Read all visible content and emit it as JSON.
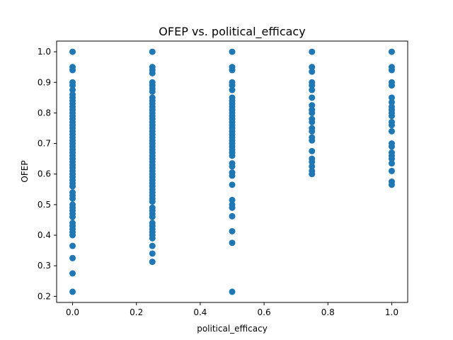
{
  "chart_data": {
    "type": "scatter",
    "title": "OFEP  vs. political_efficacy",
    "xlabel": "political_efficacy",
    "ylabel": "OFEP",
    "xlim": [
      -0.05,
      1.05
    ],
    "ylim": [
      0.18,
      1.035
    ],
    "xticks": [
      0.0,
      0.2,
      0.4,
      0.6,
      0.8,
      1.0
    ],
    "xtick_labels": [
      "0.0",
      "0.2",
      "0.4",
      "0.6",
      "0.8",
      "1.0"
    ],
    "yticks": [
      0.2,
      0.3,
      0.4,
      0.5,
      0.6,
      0.7,
      0.8,
      0.9,
      1.0
    ],
    "ytick_labels": [
      "0.2",
      "0.3",
      "0.4",
      "0.5",
      "0.6",
      "0.7",
      "0.8",
      "0.9",
      "1.0"
    ],
    "marker_color": "#1f77b4",
    "grid": false,
    "series": [
      {
        "name": "OFEP",
        "points": [
          {
            "x": 0.0,
            "y": 1.0
          },
          {
            "x": 0.0,
            "y": 0.95
          },
          {
            "x": 0.0,
            "y": 0.94
          },
          {
            "x": 0.0,
            "y": 0.9
          },
          {
            "x": 0.0,
            "y": 0.89
          },
          {
            "x": 0.0,
            "y": 0.875
          },
          {
            "x": 0.0,
            "y": 0.86
          },
          {
            "x": 0.0,
            "y": 0.85
          },
          {
            "x": 0.0,
            "y": 0.84
          },
          {
            "x": 0.0,
            "y": 0.83
          },
          {
            "x": 0.0,
            "y": 0.82
          },
          {
            "x": 0.0,
            "y": 0.81
          },
          {
            "x": 0.0,
            "y": 0.8
          },
          {
            "x": 0.0,
            "y": 0.79
          },
          {
            "x": 0.0,
            "y": 0.78
          },
          {
            "x": 0.0,
            "y": 0.77
          },
          {
            "x": 0.0,
            "y": 0.76
          },
          {
            "x": 0.0,
            "y": 0.75
          },
          {
            "x": 0.0,
            "y": 0.74
          },
          {
            "x": 0.0,
            "y": 0.73
          },
          {
            "x": 0.0,
            "y": 0.72
          },
          {
            "x": 0.0,
            "y": 0.71
          },
          {
            "x": 0.0,
            "y": 0.7
          },
          {
            "x": 0.0,
            "y": 0.69
          },
          {
            "x": 0.0,
            "y": 0.68
          },
          {
            "x": 0.0,
            "y": 0.67
          },
          {
            "x": 0.0,
            "y": 0.66
          },
          {
            "x": 0.0,
            "y": 0.65
          },
          {
            "x": 0.0,
            "y": 0.64
          },
          {
            "x": 0.0,
            "y": 0.63
          },
          {
            "x": 0.0,
            "y": 0.62
          },
          {
            "x": 0.0,
            "y": 0.61
          },
          {
            "x": 0.0,
            "y": 0.6
          },
          {
            "x": 0.0,
            "y": 0.59
          },
          {
            "x": 0.0,
            "y": 0.58
          },
          {
            "x": 0.0,
            "y": 0.57
          },
          {
            "x": 0.0,
            "y": 0.56
          },
          {
            "x": 0.0,
            "y": 0.54
          },
          {
            "x": 0.0,
            "y": 0.53
          },
          {
            "x": 0.0,
            "y": 0.52
          },
          {
            "x": 0.0,
            "y": 0.5
          },
          {
            "x": 0.0,
            "y": 0.49
          },
          {
            "x": 0.0,
            "y": 0.48
          },
          {
            "x": 0.0,
            "y": 0.47
          },
          {
            "x": 0.0,
            "y": 0.46
          },
          {
            "x": 0.0,
            "y": 0.44
          },
          {
            "x": 0.0,
            "y": 0.43
          },
          {
            "x": 0.0,
            "y": 0.42
          },
          {
            "x": 0.0,
            "y": 0.41
          },
          {
            "x": 0.0,
            "y": 0.4
          },
          {
            "x": 0.0,
            "y": 0.365
          },
          {
            "x": 0.0,
            "y": 0.325
          },
          {
            "x": 0.0,
            "y": 0.275
          },
          {
            "x": 0.0,
            "y": 0.215
          },
          {
            "x": 0.25,
            "y": 1.0
          },
          {
            "x": 0.25,
            "y": 0.95
          },
          {
            "x": 0.25,
            "y": 0.94
          },
          {
            "x": 0.25,
            "y": 0.93
          },
          {
            "x": 0.25,
            "y": 0.9
          },
          {
            "x": 0.25,
            "y": 0.89
          },
          {
            "x": 0.25,
            "y": 0.88
          },
          {
            "x": 0.25,
            "y": 0.87
          },
          {
            "x": 0.25,
            "y": 0.85
          },
          {
            "x": 0.25,
            "y": 0.84
          },
          {
            "x": 0.25,
            "y": 0.83
          },
          {
            "x": 0.25,
            "y": 0.82
          },
          {
            "x": 0.25,
            "y": 0.81
          },
          {
            "x": 0.25,
            "y": 0.8
          },
          {
            "x": 0.25,
            "y": 0.79
          },
          {
            "x": 0.25,
            "y": 0.78
          },
          {
            "x": 0.25,
            "y": 0.77
          },
          {
            "x": 0.25,
            "y": 0.76
          },
          {
            "x": 0.25,
            "y": 0.75
          },
          {
            "x": 0.25,
            "y": 0.74
          },
          {
            "x": 0.25,
            "y": 0.73
          },
          {
            "x": 0.25,
            "y": 0.72
          },
          {
            "x": 0.25,
            "y": 0.71
          },
          {
            "x": 0.25,
            "y": 0.7
          },
          {
            "x": 0.25,
            "y": 0.69
          },
          {
            "x": 0.25,
            "y": 0.68
          },
          {
            "x": 0.25,
            "y": 0.67
          },
          {
            "x": 0.25,
            "y": 0.66
          },
          {
            "x": 0.25,
            "y": 0.65
          },
          {
            "x": 0.25,
            "y": 0.64
          },
          {
            "x": 0.25,
            "y": 0.63
          },
          {
            "x": 0.25,
            "y": 0.62
          },
          {
            "x": 0.25,
            "y": 0.61
          },
          {
            "x": 0.25,
            "y": 0.6
          },
          {
            "x": 0.25,
            "y": 0.59
          },
          {
            "x": 0.25,
            "y": 0.58
          },
          {
            "x": 0.25,
            "y": 0.57
          },
          {
            "x": 0.25,
            "y": 0.56
          },
          {
            "x": 0.25,
            "y": 0.55
          },
          {
            "x": 0.25,
            "y": 0.54
          },
          {
            "x": 0.25,
            "y": 0.53
          },
          {
            "x": 0.25,
            "y": 0.52
          },
          {
            "x": 0.25,
            "y": 0.51
          },
          {
            "x": 0.25,
            "y": 0.49
          },
          {
            "x": 0.25,
            "y": 0.48
          },
          {
            "x": 0.25,
            "y": 0.47
          },
          {
            "x": 0.25,
            "y": 0.46
          },
          {
            "x": 0.25,
            "y": 0.44
          },
          {
            "x": 0.25,
            "y": 0.43
          },
          {
            "x": 0.25,
            "y": 0.42
          },
          {
            "x": 0.25,
            "y": 0.41
          },
          {
            "x": 0.25,
            "y": 0.4
          },
          {
            "x": 0.25,
            "y": 0.39
          },
          {
            "x": 0.25,
            "y": 0.365
          },
          {
            "x": 0.25,
            "y": 0.34
          },
          {
            "x": 0.25,
            "y": 0.313
          },
          {
            "x": 0.5,
            "y": 1.0
          },
          {
            "x": 0.5,
            "y": 0.95
          },
          {
            "x": 0.5,
            "y": 0.94
          },
          {
            "x": 0.5,
            "y": 0.9
          },
          {
            "x": 0.5,
            "y": 0.89
          },
          {
            "x": 0.5,
            "y": 0.875
          },
          {
            "x": 0.5,
            "y": 0.85
          },
          {
            "x": 0.5,
            "y": 0.84
          },
          {
            "x": 0.5,
            "y": 0.83
          },
          {
            "x": 0.5,
            "y": 0.82
          },
          {
            "x": 0.5,
            "y": 0.81
          },
          {
            "x": 0.5,
            "y": 0.8
          },
          {
            "x": 0.5,
            "y": 0.79
          },
          {
            "x": 0.5,
            "y": 0.78
          },
          {
            "x": 0.5,
            "y": 0.77
          },
          {
            "x": 0.5,
            "y": 0.76
          },
          {
            "x": 0.5,
            "y": 0.75
          },
          {
            "x": 0.5,
            "y": 0.74
          },
          {
            "x": 0.5,
            "y": 0.73
          },
          {
            "x": 0.5,
            "y": 0.72
          },
          {
            "x": 0.5,
            "y": 0.71
          },
          {
            "x": 0.5,
            "y": 0.7
          },
          {
            "x": 0.5,
            "y": 0.69
          },
          {
            "x": 0.5,
            "y": 0.68
          },
          {
            "x": 0.5,
            "y": 0.67
          },
          {
            "x": 0.5,
            "y": 0.66
          },
          {
            "x": 0.5,
            "y": 0.635
          },
          {
            "x": 0.5,
            "y": 0.625
          },
          {
            "x": 0.5,
            "y": 0.605
          },
          {
            "x": 0.5,
            "y": 0.595
          },
          {
            "x": 0.5,
            "y": 0.565
          },
          {
            "x": 0.5,
            "y": 0.515
          },
          {
            "x": 0.5,
            "y": 0.5
          },
          {
            "x": 0.5,
            "y": 0.49
          },
          {
            "x": 0.5,
            "y": 0.462
          },
          {
            "x": 0.5,
            "y": 0.413
          },
          {
            "x": 0.5,
            "y": 0.375
          },
          {
            "x": 0.5,
            "y": 0.215
          },
          {
            "x": 0.75,
            "y": 1.0
          },
          {
            "x": 0.75,
            "y": 0.95
          },
          {
            "x": 0.75,
            "y": 0.935
          },
          {
            "x": 0.75,
            "y": 0.9
          },
          {
            "x": 0.75,
            "y": 0.89
          },
          {
            "x": 0.75,
            "y": 0.875
          },
          {
            "x": 0.75,
            "y": 0.85
          },
          {
            "x": 0.75,
            "y": 0.825
          },
          {
            "x": 0.75,
            "y": 0.81
          },
          {
            "x": 0.75,
            "y": 0.8
          },
          {
            "x": 0.75,
            "y": 0.78
          },
          {
            "x": 0.75,
            "y": 0.77
          },
          {
            "x": 0.75,
            "y": 0.75
          },
          {
            "x": 0.75,
            "y": 0.74
          },
          {
            "x": 0.75,
            "y": 0.72
          },
          {
            "x": 0.75,
            "y": 0.71
          },
          {
            "x": 0.75,
            "y": 0.675
          },
          {
            "x": 0.75,
            "y": 0.65
          },
          {
            "x": 0.75,
            "y": 0.64
          },
          {
            "x": 0.75,
            "y": 0.625
          },
          {
            "x": 0.75,
            "y": 0.61
          },
          {
            "x": 0.75,
            "y": 0.6
          },
          {
            "x": 1.0,
            "y": 1.0
          },
          {
            "x": 1.0,
            "y": 0.95
          },
          {
            "x": 1.0,
            "y": 0.94
          },
          {
            "x": 1.0,
            "y": 0.9
          },
          {
            "x": 1.0,
            "y": 0.89
          },
          {
            "x": 1.0,
            "y": 0.85
          },
          {
            "x": 1.0,
            "y": 0.835
          },
          {
            "x": 1.0,
            "y": 0.82
          },
          {
            "x": 1.0,
            "y": 0.81
          },
          {
            "x": 1.0,
            "y": 0.8
          },
          {
            "x": 1.0,
            "y": 0.79
          },
          {
            "x": 1.0,
            "y": 0.77
          },
          {
            "x": 1.0,
            "y": 0.76
          },
          {
            "x": 1.0,
            "y": 0.74
          },
          {
            "x": 1.0,
            "y": 0.7
          },
          {
            "x": 1.0,
            "y": 0.69
          },
          {
            "x": 1.0,
            "y": 0.67
          },
          {
            "x": 1.0,
            "y": 0.66
          },
          {
            "x": 1.0,
            "y": 0.65
          },
          {
            "x": 1.0,
            "y": 0.635
          },
          {
            "x": 1.0,
            "y": 0.61
          },
          {
            "x": 1.0,
            "y": 0.575
          },
          {
            "x": 1.0,
            "y": 0.565
          }
        ]
      }
    ]
  }
}
